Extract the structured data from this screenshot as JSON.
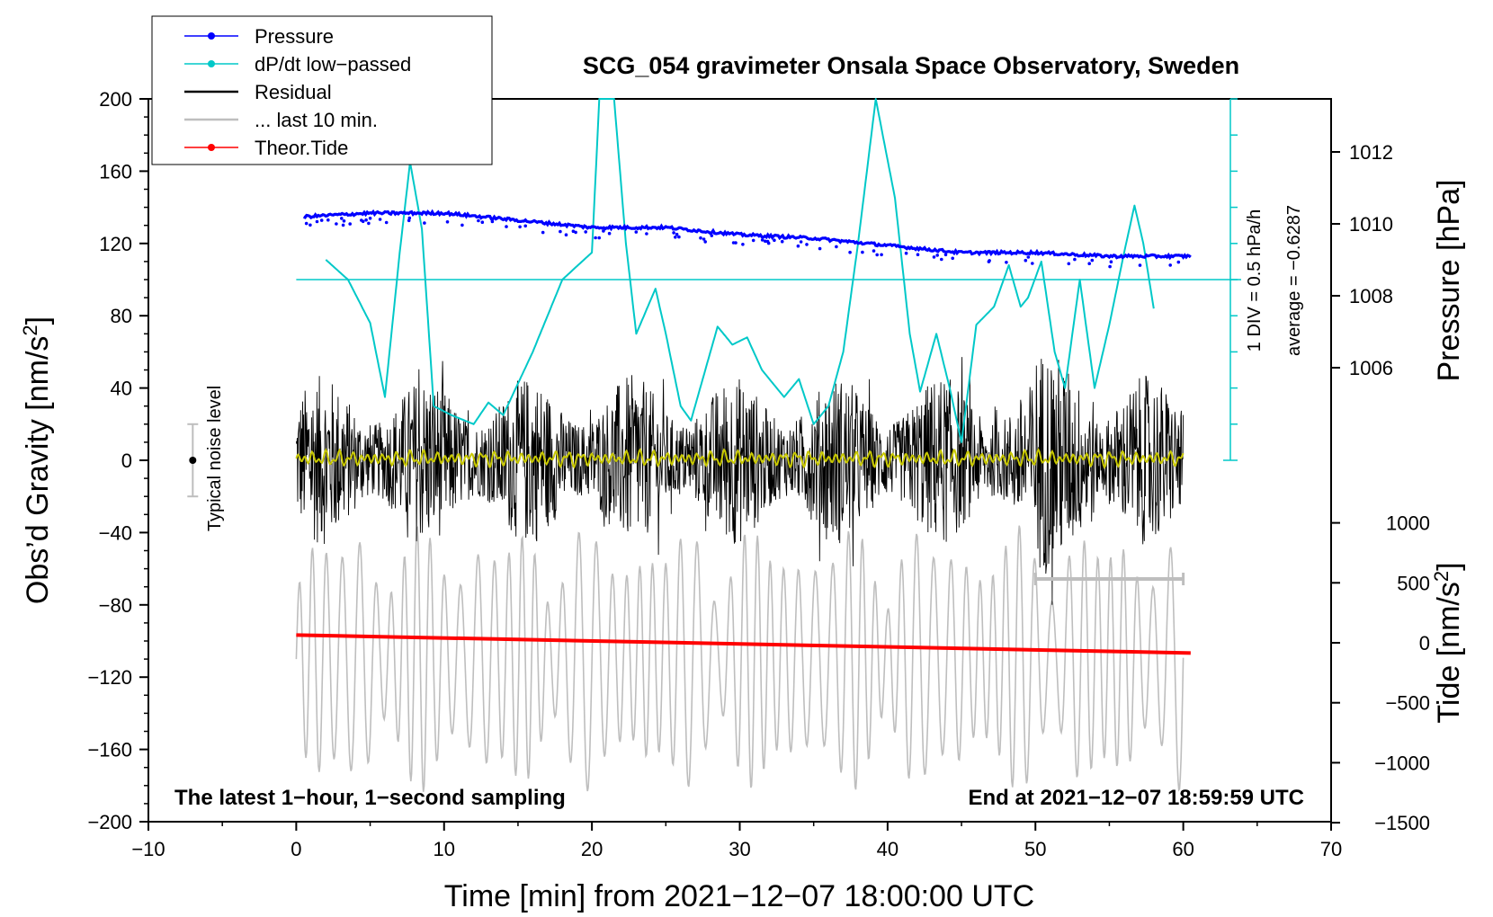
{
  "chart_data": {
    "type": "line",
    "title": "SCG_054 gravimeter Onsala Space Observatory, Sweden",
    "xlabel": "Time [min] from 2021−12−07 18:00:00 UTC",
    "ylabel_main": "Obs’d Gravity [nm/s",
    "ylabel_main_sup": "2",
    "ylabel_main_close": "]",
    "ylabel_pressure": "Pressure [hPa]",
    "ylabel_tide": "Tide [nm/s",
    "ylabel_tide_sup": "2",
    "ylabel_tide_close": "]",
    "xlim": [
      -10,
      70
    ],
    "ylim": [
      -200,
      200
    ],
    "x_ticks": [
      "−10",
      "0",
      "10",
      "20",
      "30",
      "40",
      "50",
      "60",
      "70"
    ],
    "y_ticks": [
      "200",
      "160",
      "120",
      "80",
      "40",
      "0",
      "−40",
      "−80",
      "−120",
      "−160",
      "−200"
    ],
    "pressure_axis": {
      "ticks": [
        "1012",
        "1010",
        "1008",
        "1006"
      ],
      "tick_values": [
        1012,
        1010,
        1008,
        1006
      ]
    },
    "tide_axis": {
      "ticks": [
        "1000",
        "500",
        "0",
        "−500",
        "−1000",
        "−1500"
      ],
      "tick_values": [
        1000,
        500,
        0,
        -500,
        -1000,
        -1500
      ]
    },
    "legend": [
      {
        "label": "Pressure",
        "color": "#0000ff",
        "marker": true
      },
      {
        "label": "dP/dt low−passed",
        "color": "#00c8c8",
        "marker": true
      },
      {
        "label": "Residual",
        "color": "#000000",
        "marker": false
      },
      {
        "label": "... last 10 min.",
        "color": "#bebebe",
        "marker": false
      },
      {
        "label": "Theor.Tide",
        "color": "#ff0000",
        "marker": true
      }
    ],
    "legend_position": "top-left",
    "noise_label": "Typical noise level",
    "noise_bar": {
      "x": -7,
      "center": 0,
      "halfwidth": 20
    },
    "dpdt_scale_label": "1 DIV = 0.5 hPa/h",
    "dpdt_average_label": "average = −0.6287",
    "bottom_left_note": "The latest 1−hour, 1−second sampling",
    "bottom_right_note": "End at 2021−12−07 18:59:59 UTC",
    "last10_span": [
      50,
      60
    ],
    "series": [
      {
        "name": "Pressure",
        "axis": "pressure",
        "x": [
          0.5,
          5,
          10,
          15,
          20,
          25,
          30,
          35,
          40,
          45,
          50,
          55,
          60.5
        ],
        "values": [
          1010.2,
          1010.3,
          1010.3,
          1010.1,
          1009.9,
          1009.9,
          1009.7,
          1009.6,
          1009.4,
          1009.2,
          1009.2,
          1009.1,
          1009.1
        ]
      },
      {
        "name": "dP/dt low-passed",
        "axis": "main",
        "x": [
          2,
          3.5,
          5,
          6,
          7,
          7.7,
          8.5,
          9.3,
          10.5,
          12,
          13,
          14,
          16,
          18,
          20,
          20.5,
          21.5,
          22.3,
          23,
          24.3,
          25,
          26,
          26.7,
          28.5,
          29.5,
          30.5,
          31.5,
          33,
          34,
          35,
          36,
          37,
          38,
          39.2,
          40.5,
          41.5,
          42.2,
          43.3,
          44.2,
          45,
          46,
          47.2,
          48.2,
          49,
          49.5,
          50.4,
          51.3,
          52,
          53,
          54,
          55,
          56,
          56.7,
          57.3,
          58
        ],
        "values": [
          111,
          100,
          76,
          35,
          115,
          165,
          128,
          30,
          25,
          20,
          32,
          25,
          60,
          100,
          115,
          200,
          200,
          120,
          70,
          95,
          70,
          30,
          22,
          74,
          64,
          68,
          50,
          35,
          45,
          20,
          30,
          60,
          120,
          200,
          145,
          70,
          38,
          70,
          40,
          10,
          75,
          85,
          108,
          85,
          90,
          110,
          60,
          40,
          100,
          40,
          75,
          115,
          141,
          120,
          84
        ]
      },
      {
        "name": "Residual",
        "axis": "main",
        "x_range": [
          0,
          60
        ],
        "amplitude_nm_s2": 45,
        "max_abs_nm_s2": 80
      },
      {
        "name": "last 10 min.",
        "axis": "main",
        "x_range": [
          0,
          60
        ],
        "offset_nm_s2": -110,
        "amplitude_nm_s2": 65
      },
      {
        "name": "Theor.Tide",
        "axis": "tide",
        "x": [
          0,
          60.5
        ],
        "values": [
          65,
          -85
        ]
      }
    ]
  }
}
